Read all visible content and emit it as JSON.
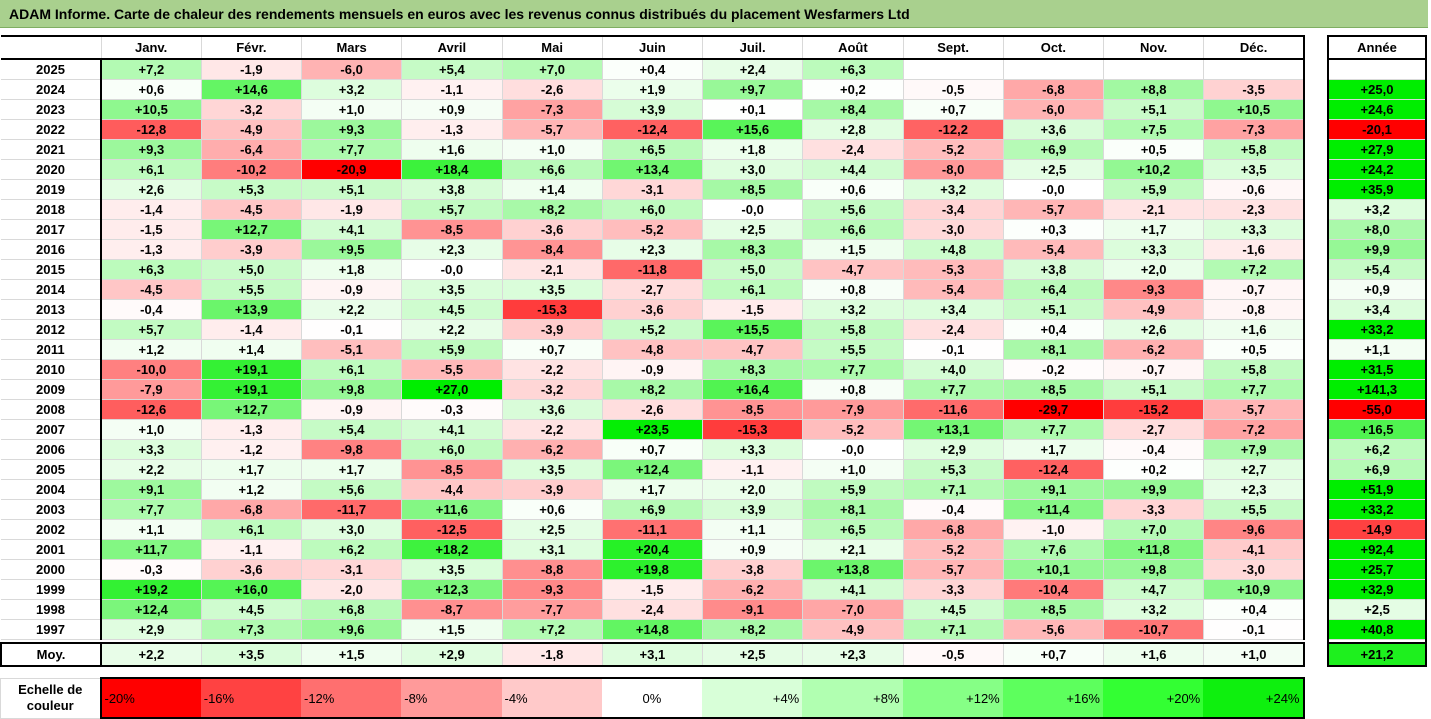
{
  "title": "ADAM Informe. Carte de chaleur des rendements mensuels en euros avec les revenus connus distribués du placement Wesfarmers Ltd",
  "chart_data": {
    "type": "heatmap",
    "columns": [
      "Janv.",
      "Févr.",
      "Mars",
      "Avril",
      "Mai",
      "Juin",
      "Juil.",
      "Août",
      "Sept.",
      "Oct.",
      "Nov.",
      "Déc."
    ],
    "year_header": "Année",
    "rows": [
      {
        "year": "2025",
        "values": [
          "+7,2",
          "-1,9",
          "-6,0",
          "+5,4",
          "+7,0",
          "+0,4",
          "+2,4",
          "+6,3",
          "",
          "",
          "",
          ""
        ],
        "annual": ""
      },
      {
        "year": "2024",
        "values": [
          "+0,6",
          "+14,6",
          "+3,2",
          "-1,1",
          "-2,6",
          "+1,9",
          "+9,7",
          "+0,2",
          "-0,5",
          "-6,8",
          "+8,8",
          "-3,5"
        ],
        "annual": "+25,0"
      },
      {
        "year": "2023",
        "values": [
          "+10,5",
          "-3,2",
          "+1,0",
          "+0,9",
          "-7,3",
          "+3,9",
          "+0,1",
          "+8,4",
          "+0,7",
          "-6,0",
          "+5,1",
          "+10,5"
        ],
        "annual": "+24,6"
      },
      {
        "year": "2022",
        "values": [
          "-12,8",
          "-4,9",
          "+9,3",
          "-1,3",
          "-5,7",
          "-12,4",
          "+15,6",
          "+2,8",
          "-12,2",
          "+3,6",
          "+7,5",
          "-7,3"
        ],
        "annual": "-20,1"
      },
      {
        "year": "2021",
        "values": [
          "+9,3",
          "-6,4",
          "+7,7",
          "+1,6",
          "+1,0",
          "+6,5",
          "+1,8",
          "-2,4",
          "-5,2",
          "+6,9",
          "+0,5",
          "+5,8"
        ],
        "annual": "+27,9"
      },
      {
        "year": "2020",
        "values": [
          "+6,1",
          "-10,2",
          "-20,9",
          "+18,4",
          "+6,6",
          "+13,4",
          "+3,0",
          "+4,4",
          "-8,0",
          "+2,5",
          "+10,2",
          "+3,5"
        ],
        "annual": "+24,2"
      },
      {
        "year": "2019",
        "values": [
          "+2,6",
          "+5,3",
          "+5,1",
          "+3,8",
          "+1,4",
          "-3,1",
          "+8,5",
          "+0,6",
          "+3,2",
          "-0,0",
          "+5,9",
          "-0,6"
        ],
        "annual": "+35,9"
      },
      {
        "year": "2018",
        "values": [
          "-1,4",
          "-4,5",
          "-1,9",
          "+5,7",
          "+8,2",
          "+6,0",
          "-0,0",
          "+5,6",
          "-3,4",
          "-5,7",
          "-2,1",
          "-2,3"
        ],
        "annual": "+3,2"
      },
      {
        "year": "2017",
        "values": [
          "-1,5",
          "+12,7",
          "+4,1",
          "-8,5",
          "-3,6",
          "-5,2",
          "+2,5",
          "+6,6",
          "-3,0",
          "+0,3",
          "+1,7",
          "+3,3"
        ],
        "annual": "+8,0"
      },
      {
        "year": "2016",
        "values": [
          "-1,3",
          "-3,9",
          "+9,5",
          "+2,3",
          "-8,4",
          "+2,3",
          "+8,3",
          "+1,5",
          "+4,8",
          "-5,4",
          "+3,3",
          "-1,6"
        ],
        "annual": "+9,9"
      },
      {
        "year": "2015",
        "values": [
          "+6,3",
          "+5,0",
          "+1,8",
          "-0,0",
          "-2,1",
          "-11,8",
          "+5,0",
          "-4,7",
          "-5,3",
          "+3,8",
          "+2,0",
          "+7,2"
        ],
        "annual": "+5,4"
      },
      {
        "year": "2014",
        "values": [
          "-4,5",
          "+5,5",
          "-0,9",
          "+3,5",
          "+3,5",
          "-2,7",
          "+6,1",
          "+0,8",
          "-5,4",
          "+6,4",
          "-9,3",
          "-0,7"
        ],
        "annual": "+0,9"
      },
      {
        "year": "2013",
        "values": [
          "-0,4",
          "+13,9",
          "+2,2",
          "+4,5",
          "-15,3",
          "-3,6",
          "-1,5",
          "+3,2",
          "+3,4",
          "+5,1",
          "-4,9",
          "-0,8"
        ],
        "annual": "+3,4"
      },
      {
        "year": "2012",
        "values": [
          "+5,7",
          "-1,4",
          "-0,1",
          "+2,2",
          "-3,9",
          "+5,2",
          "+15,5",
          "+5,8",
          "-2,4",
          "+0,4",
          "+2,6",
          "+1,6"
        ],
        "annual": "+33,2"
      },
      {
        "year": "2011",
        "values": [
          "+1,2",
          "+1,4",
          "-5,1",
          "+5,9",
          "+0,7",
          "-4,8",
          "-4,7",
          "+5,5",
          "-0,1",
          "+8,1",
          "-6,2",
          "+0,5"
        ],
        "annual": "+1,1"
      },
      {
        "year": "2010",
        "values": [
          "-10,0",
          "+19,1",
          "+6,1",
          "-5,5",
          "-2,2",
          "-0,9",
          "+8,3",
          "+7,7",
          "+4,0",
          "-0,2",
          "-0,7",
          "+5,8"
        ],
        "annual": "+31,5"
      },
      {
        "year": "2009",
        "values": [
          "-7,9",
          "+19,1",
          "+9,8",
          "+27,0",
          "-3,2",
          "+8,2",
          "+16,4",
          "+0,8",
          "+7,7",
          "+8,5",
          "+5,1",
          "+7,7"
        ],
        "annual": "+141,3"
      },
      {
        "year": "2008",
        "values": [
          "-12,6",
          "+12,7",
          "-0,9",
          "-0,3",
          "+3,6",
          "-2,6",
          "-8,5",
          "-7,9",
          "-11,6",
          "-29,7",
          "-15,2",
          "-5,7"
        ],
        "annual": "-55,0"
      },
      {
        "year": "2007",
        "values": [
          "+1,0",
          "-1,3",
          "+5,4",
          "+4,1",
          "-2,2",
          "+23,5",
          "-15,3",
          "-5,2",
          "+13,1",
          "+7,7",
          "-2,7",
          "-7,2"
        ],
        "annual": "+16,5"
      },
      {
        "year": "2006",
        "values": [
          "+3,3",
          "-1,2",
          "-9,8",
          "+6,0",
          "-6,2",
          "+0,7",
          "+3,3",
          "-0,0",
          "+2,9",
          "+1,7",
          "-0,4",
          "+7,9"
        ],
        "annual": "+6,2"
      },
      {
        "year": "2005",
        "values": [
          "+2,2",
          "+1,7",
          "+1,7",
          "-8,5",
          "+3,5",
          "+12,4",
          "-1,1",
          "+1,0",
          "+5,3",
          "-12,4",
          "+0,2",
          "+2,7"
        ],
        "annual": "+6,9"
      },
      {
        "year": "2004",
        "values": [
          "+9,1",
          "+1,2",
          "+5,6",
          "-4,4",
          "-3,9",
          "+1,7",
          "+2,0",
          "+5,9",
          "+7,1",
          "+9,1",
          "+9,9",
          "+2,3"
        ],
        "annual": "+51,9"
      },
      {
        "year": "2003",
        "values": [
          "+7,7",
          "-6,8",
          "-11,7",
          "+11,6",
          "+0,6",
          "+6,9",
          "+3,9",
          "+8,1",
          "-0,4",
          "+11,4",
          "-3,3",
          "+5,5"
        ],
        "annual": "+33,2"
      },
      {
        "year": "2002",
        "values": [
          "+1,1",
          "+6,1",
          "+3,0",
          "-12,5",
          "+2,5",
          "-11,1",
          "+1,1",
          "+6,5",
          "-6,8",
          "-1,0",
          "+7,0",
          "-9,6"
        ],
        "annual": "-14,9"
      },
      {
        "year": "2001",
        "values": [
          "+11,7",
          "-1,1",
          "+6,2",
          "+18,2",
          "+3,1",
          "+20,4",
          "+0,9",
          "+2,1",
          "-5,2",
          "+7,6",
          "+11,8",
          "-4,1"
        ],
        "annual": "+92,4"
      },
      {
        "year": "2000",
        "values": [
          "-0,3",
          "-3,6",
          "-3,1",
          "+3,5",
          "-8,8",
          "+19,8",
          "-3,8",
          "+13,8",
          "-5,7",
          "+10,1",
          "+9,8",
          "-3,0"
        ],
        "annual": "+25,7"
      },
      {
        "year": "1999",
        "values": [
          "+19,2",
          "+16,0",
          "-2,0",
          "+12,3",
          "-9,3",
          "-1,5",
          "-6,2",
          "+4,1",
          "-3,3",
          "-10,4",
          "+4,7",
          "+10,9"
        ],
        "annual": "+32,9"
      },
      {
        "year": "1998",
        "values": [
          "+12,4",
          "+4,5",
          "+6,8",
          "-8,7",
          "-7,7",
          "-2,4",
          "-9,1",
          "-7,0",
          "+4,5",
          "+8,5",
          "+3,2",
          "+0,4"
        ],
        "annual": "+2,5"
      },
      {
        "year": "1997",
        "values": [
          "+2,9",
          "+7,3",
          "+9,6",
          "+1,5",
          "+7,2",
          "+14,8",
          "+8,2",
          "-4,9",
          "+7,1",
          "-5,6",
          "-10,7",
          "-0,1"
        ],
        "annual": "+40,8"
      }
    ],
    "average": {
      "label": "Moy.",
      "values": [
        "+2,2",
        "+3,5",
        "+1,5",
        "+2,9",
        "-1,8",
        "+3,1",
        "+2,5",
        "+2,3",
        "-0,5",
        "+0,7",
        "+1,6",
        "+1,0"
      ],
      "annual": "+21,2"
    },
    "scale": {
      "label": "Echelle de couleur",
      "steps": [
        {
          "text": "-20%",
          "color": "#ff0000",
          "align": "left"
        },
        {
          "text": "-16%",
          "color": "#ff4242",
          "align": "left"
        },
        {
          "text": "-12%",
          "color": "#ff6f6f",
          "align": "left"
        },
        {
          "text": "-8%",
          "color": "#ff9a9a",
          "align": "left"
        },
        {
          "text": "-4%",
          "color": "#ffc9c9",
          "align": "left"
        },
        {
          "text": "0%",
          "color": "#ffffff",
          "align": "center"
        },
        {
          "text": "+4%",
          "color": "#d8ffd8",
          "align": "right"
        },
        {
          "text": "+8%",
          "color": "#b1ffb1",
          "align": "right"
        },
        {
          "text": "+12%",
          "color": "#86ff86",
          "align": "right"
        },
        {
          "text": "+16%",
          "color": "#5dff5d",
          "align": "right"
        },
        {
          "text": "+20%",
          "color": "#33ff33",
          "align": "right"
        },
        {
          "text": "+24%",
          "color": "#0ef00e",
          "align": "right"
        }
      ]
    },
    "color_scale": {
      "min": -20,
      "max": 24,
      "negative_color": "#ff0000",
      "positive_color": "#00ee00",
      "neutral_color": "#ffffff"
    }
  }
}
